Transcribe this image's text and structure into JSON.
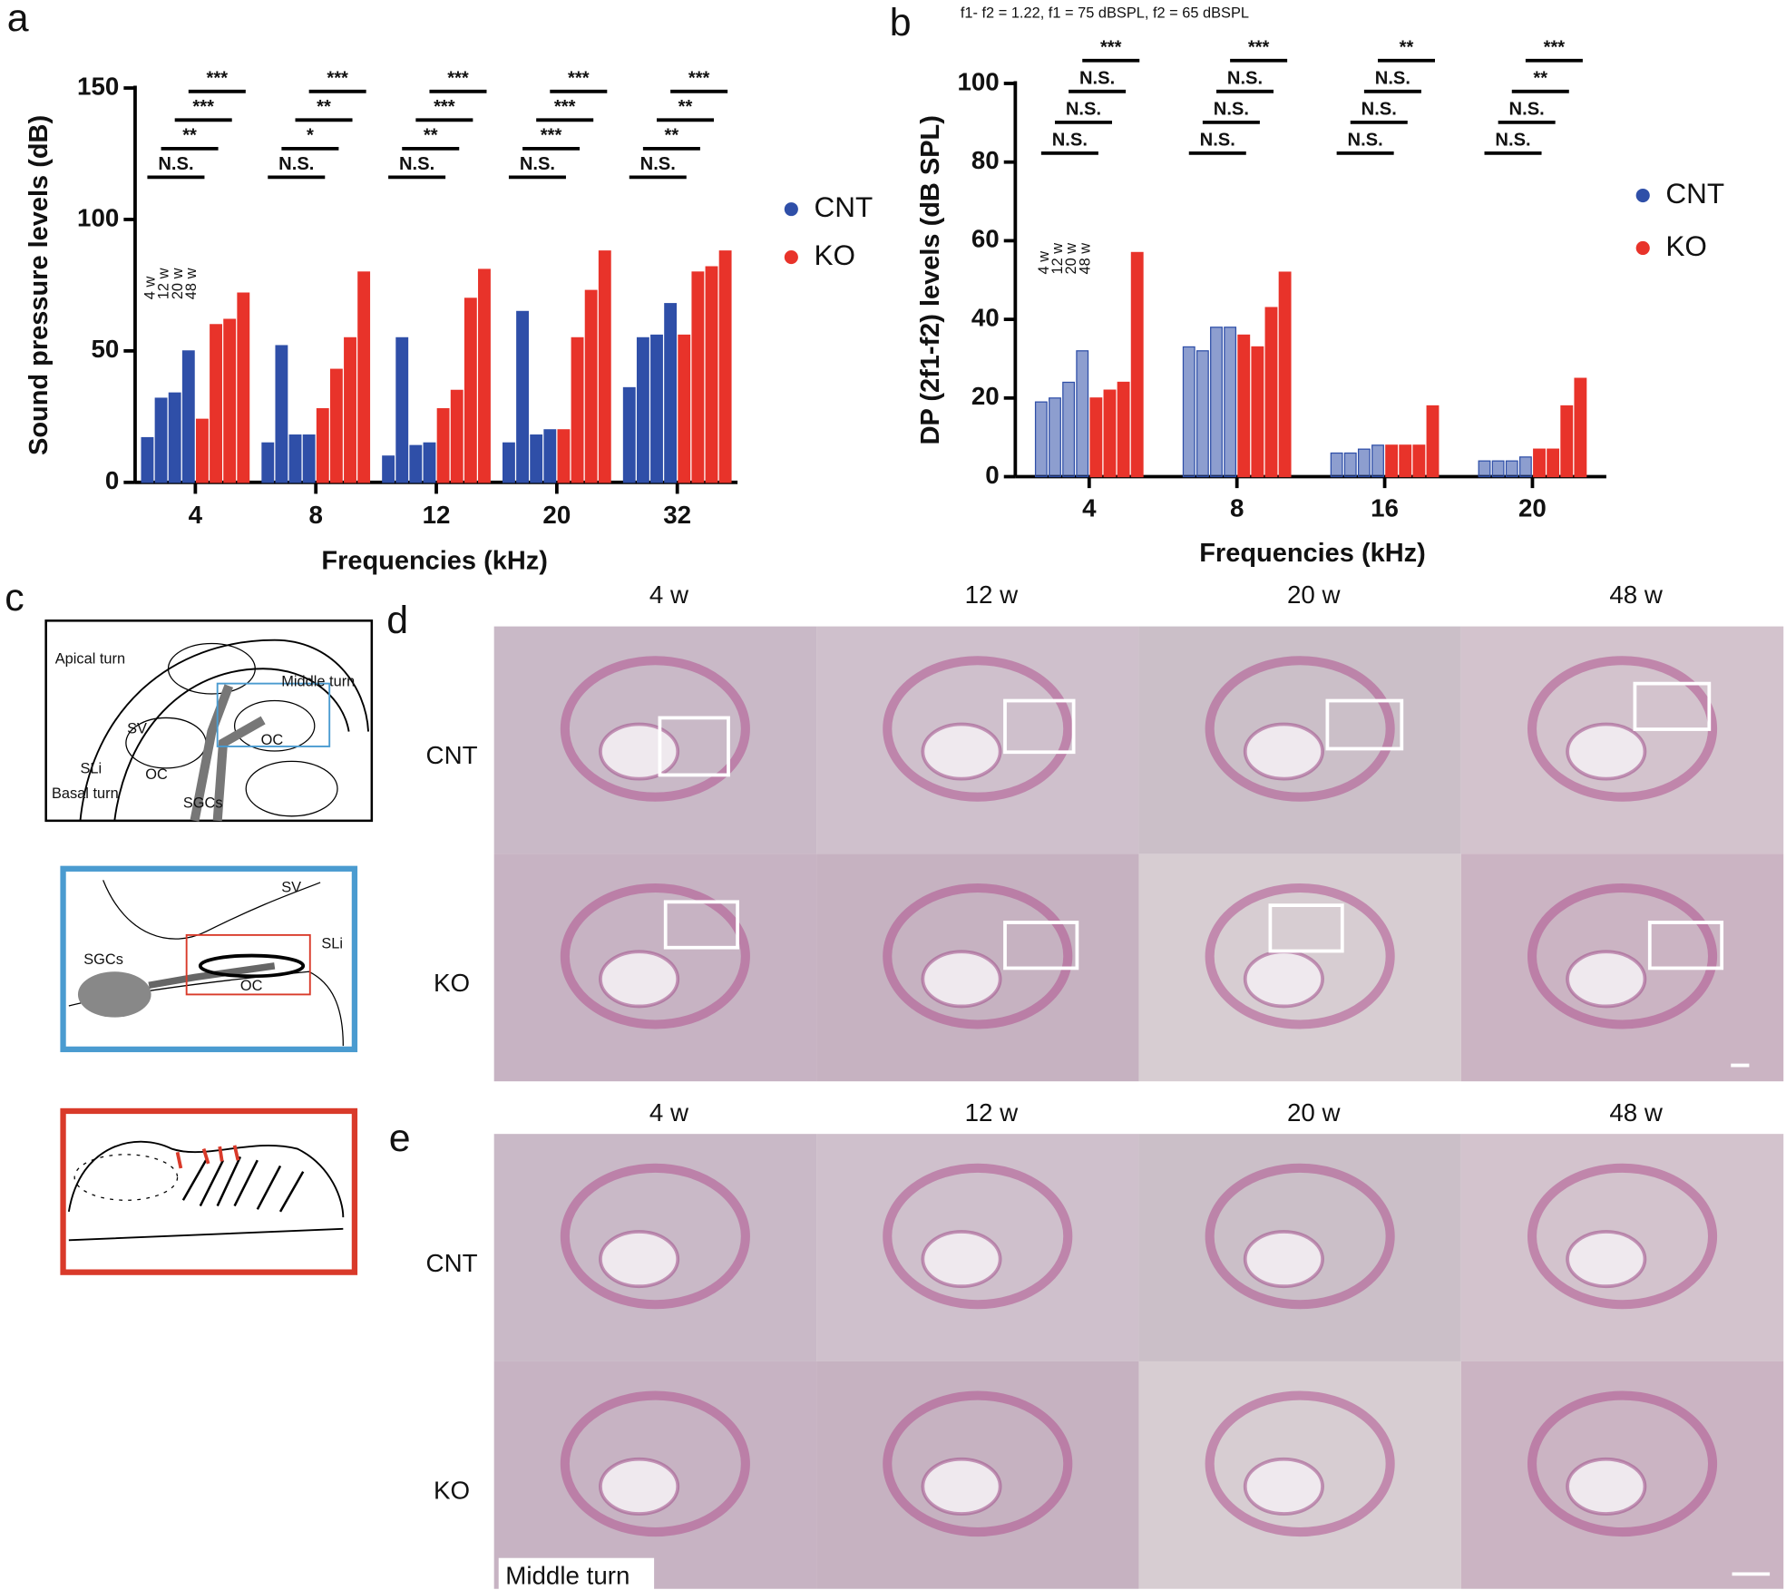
{
  "panel_labels": [
    "a",
    "b",
    "c",
    "d",
    "e"
  ],
  "chart_data": [
    {
      "type": "bar",
      "y_label": "Sound pressure levels (dB)",
      "x_label": "Frequencies (kHz)",
      "categories": [
        "4",
        "8",
        "12",
        "20",
        "32"
      ],
      "groups": [
        "4 w",
        "12 w",
        "20 w",
        "48 w"
      ],
      "series": [
        {
          "name": "CNT",
          "color": "#2f4fa8",
          "values": [
            [
              17,
              32,
              34,
              50
            ],
            [
              15,
              52,
              18,
              18
            ],
            [
              10,
              55,
              14,
              15
            ],
            [
              15,
              65,
              18,
              20
            ],
            [
              36,
              55,
              56,
              68
            ]
          ]
        },
        {
          "name": "KO",
          "color": "#e8332a",
          "values": [
            [
              24,
              60,
              62,
              72
            ],
            [
              28,
              43,
              55,
              80
            ],
            [
              28,
              35,
              70,
              81
            ],
            [
              20,
              55,
              73,
              88
            ],
            [
              56,
              80,
              82,
              88
            ]
          ]
        }
      ],
      "ylim": [
        0,
        150
      ],
      "yticks": [
        0,
        50,
        100,
        150
      ],
      "significance": [
        [
          "N.S.",
          "**",
          "***",
          "***"
        ],
        [
          "N.S.",
          "*",
          "**",
          "***"
        ],
        [
          "N.S.",
          "**",
          "***",
          "***"
        ],
        [
          "N.S.",
          "***",
          "***",
          "***"
        ],
        [
          "N.S.",
          "**",
          "**",
          "***"
        ]
      ],
      "legend": "right"
    },
    {
      "type": "bar",
      "subtitle": "f1- f2 = 1.22, f1 = 75 dBSPL, f2 = 65 dBSPL",
      "y_label": "DP (2f1-f2) levels (dB SPL)",
      "x_label": "Frequencies (kHz)",
      "categories": [
        "4",
        "8",
        "16",
        "20"
      ],
      "groups": [
        "4 w",
        "12 w",
        "20 w",
        "48 w"
      ],
      "series": [
        {
          "name": "CNT",
          "color": "#2f4fa8",
          "values": [
            [
              19,
              20,
              24,
              32
            ],
            [
              33,
              32,
              38,
              38
            ],
            [
              6,
              6,
              7,
              8
            ],
            [
              4,
              4,
              4,
              5
            ]
          ]
        },
        {
          "name": "KO",
          "color": "#e8332a",
          "values": [
            [
              20,
              22,
              24,
              57
            ],
            [
              36,
              33,
              43,
              52
            ],
            [
              8,
              8,
              8,
              18
            ],
            [
              7,
              7,
              18,
              25
            ]
          ]
        }
      ],
      "ylim": [
        0,
        100
      ],
      "yticks": [
        0,
        20,
        40,
        60,
        80,
        100
      ],
      "significance": [
        [
          "N.S.",
          "N.S.",
          "N.S.",
          "***"
        ],
        [
          "N.S.",
          "N.S.",
          "N.S.",
          "***"
        ],
        [
          "N.S.",
          "N.S.",
          "N.S.",
          "**"
        ],
        [
          "N.S.",
          "N.S.",
          "**",
          "***"
        ]
      ],
      "legend": "right"
    }
  ],
  "diagram": {
    "overview_labels": [
      "Apical turn",
      "Middle turn",
      "SV",
      "OC",
      "SLi",
      "OC",
      "Basal turn",
      "SGCs"
    ],
    "middle_turn_labels": [
      "SV",
      "SLi",
      "SGCs",
      "OC"
    ]
  },
  "histology_d": {
    "columns": [
      "4 w",
      "12 w",
      "20 w",
      "48 w"
    ],
    "rows": [
      "CNT",
      "KO"
    ]
  },
  "histology_e": {
    "columns": [
      "4 w",
      "12 w",
      "20 w",
      "48 w"
    ],
    "rows": [
      "CNT",
      "KO"
    ],
    "caption": "Middle turn"
  }
}
